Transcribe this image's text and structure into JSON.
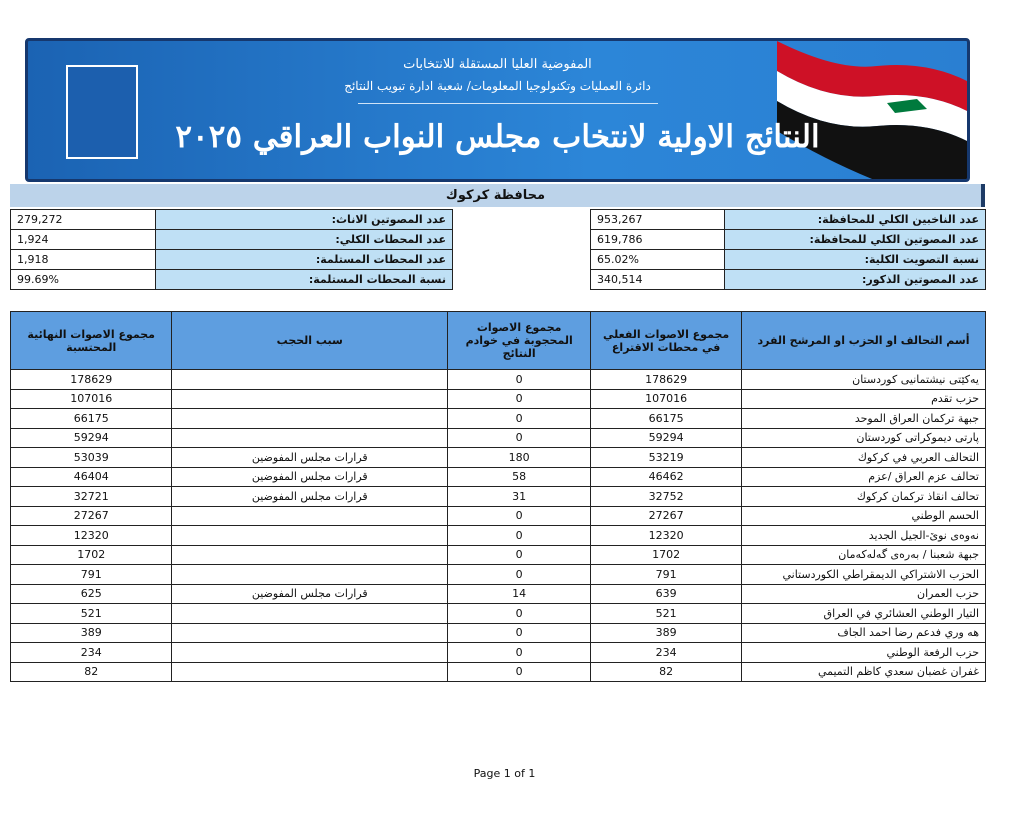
{
  "header": {
    "commission": "المفوضية العليا المستقلة للانتخابات",
    "department": "دائرة العمليات وتكنولوجيا المعلومات/ شعبة ادارة تبويب النتائج",
    "title": "النتائج الاولية لانتخاب مجلس النواب العراقي ٢٠٢٥"
  },
  "province": "محافظة كركوك",
  "summary": {
    "right": [
      [
        "عدد الناخبين الكلي للمحافظة:",
        "953,267"
      ],
      [
        "عدد المصوتين الكلي للمحافظة:",
        "619,786"
      ],
      [
        "نسبة التصويت الكلية:",
        "65.02%"
      ],
      [
        "عدد المصوتين الذكور:",
        "340,514"
      ]
    ],
    "left": [
      [
        "عدد المصوتين الاناث:",
        "279,272"
      ],
      [
        "عدد المحطات الكلي:",
        "1,924"
      ],
      [
        "عدد المحطات المستلمة:",
        "1,918"
      ],
      [
        "نسبة المحطات المستلمة:",
        "99.69%"
      ]
    ]
  },
  "table": {
    "columns": [
      "أسم التحالف او الحزب او المرشح الفرد",
      "مجموع الاصوات الفعلي في محطات الاقتراع",
      "مجموع الاصوات المحجوبة في خوادم النتائج",
      "سبب الحجب",
      "مجموع الاصوات النهائية المحتسبة"
    ],
    "rows": [
      [
        "يەکێتی نیشتمانیی کوردستان",
        178629,
        0,
        null,
        178629
      ],
      [
        "حزب تقدم",
        107016,
        0,
        null,
        107016
      ],
      [
        "جبهة تركمان العراق الموحد",
        66175,
        0,
        null,
        66175
      ],
      [
        "پارتی دیموکراتی کوردستان",
        59294,
        0,
        null,
        59294
      ],
      [
        "التحالف العربي في كركوك",
        53219,
        180,
        "قرارات مجلس المفوضين",
        53039
      ],
      [
        "تحالف عزم العراق /عزم",
        46462,
        58,
        "قرارات مجلس المفوضين",
        46404
      ],
      [
        "تحالف انقاذ تركمان كركوك",
        32752,
        31,
        "قرارات مجلس المفوضين",
        32721
      ],
      [
        "الحسم الوطني",
        27267,
        0,
        null,
        27267
      ],
      [
        "نەوەی نوێ-الجيل الجديد",
        12320,
        0,
        null,
        12320
      ],
      [
        "جبهة شعبنا / بەرەی گەلەکەمان",
        1702,
        0,
        null,
        1702
      ],
      [
        "الحزب الاشتراكي الديمقراطي الكوردستاني",
        791,
        0,
        null,
        791
      ],
      [
        "حزب العمران",
        639,
        14,
        "قرارات مجلس المفوضين",
        625
      ],
      [
        "التيار الوطني العشائري في العراق",
        521,
        0,
        null,
        521
      ],
      [
        "هه وري فدعم رضا احمد الجاف",
        389,
        0,
        null,
        389
      ],
      [
        "حزب الرفعة الوطني",
        234,
        0,
        null,
        234
      ],
      [
        "غفران غضبان سعدي كاظم التميمي",
        82,
        0,
        null,
        82
      ]
    ]
  },
  "footer": "Page 1 of 1"
}
